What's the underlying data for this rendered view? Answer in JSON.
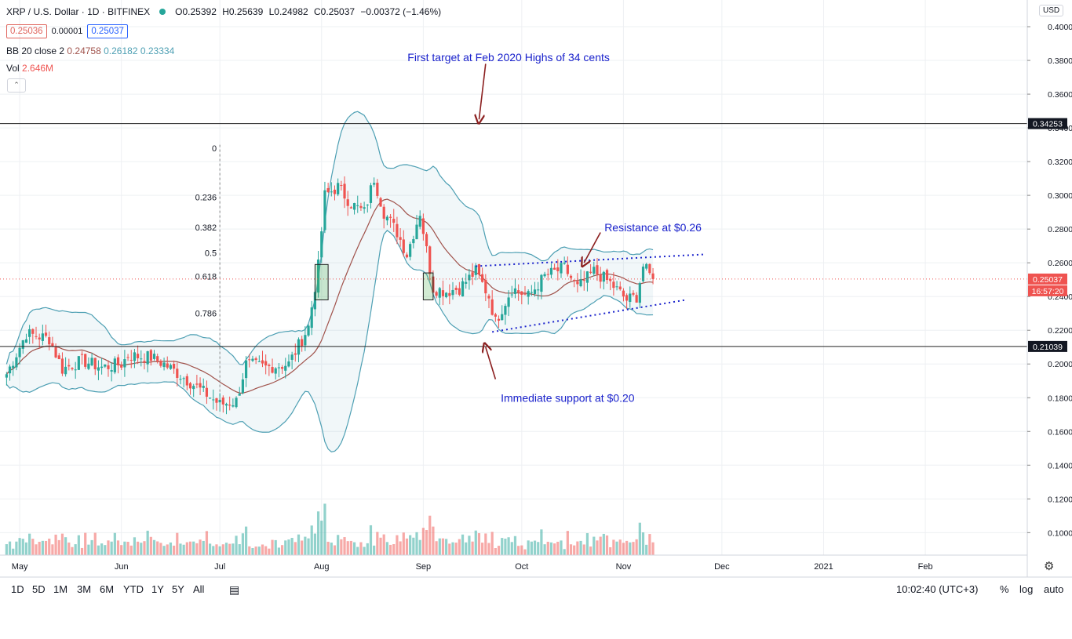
{
  "header": {
    "symbol": "XRP / U.S. Dollar · 1D · BITFINEX",
    "open": "O0.25392",
    "high": "H0.25639",
    "low": "L0.24982",
    "close": "C0.25037",
    "change": "−0.00372 (−1.46%)",
    "sell_price": "0.25036",
    "spread": "0.00001",
    "buy_price": "0.25037",
    "currency": "USD"
  },
  "indicators": {
    "bb_label": "BB 20 close 2",
    "bb_mid": "0.24758",
    "bb_upper": "0.26182",
    "bb_lower": "0.23334",
    "vol_label": "Vol",
    "vol_value": "2.646M"
  },
  "toolbar": {
    "timeframes": [
      "1D",
      "5D",
      "1M",
      "3M",
      "6M",
      "YTD",
      "1Y",
      "5Y",
      "All"
    ],
    "time": "10:02:40 (UTC+3)",
    "percent": "%",
    "log": "log",
    "auto": "auto"
  },
  "colors": {
    "up": "#26a69a",
    "down": "#ef5350",
    "bb_band": "#4d9fb3",
    "bb_mid": "#a0524b",
    "annotation": "#1a22cc"
  },
  "chart_data": {
    "type": "candlestick",
    "pair": "XRP/USD",
    "interval": "1D",
    "y_axis": {
      "ticks": [
        "0.40000",
        "0.38000",
        "0.36000",
        "0.34000",
        "0.32000",
        "0.30000",
        "0.28000",
        "0.26000",
        "0.24000",
        "0.22000",
        "0.20000",
        "0.18000",
        "0.16000",
        "0.14000",
        "0.12000",
        "0.10000"
      ],
      "range": [
        0.085,
        0.402
      ]
    },
    "x_axis": {
      "ticks": [
        "May",
        "Jun",
        "Jul",
        "Aug",
        "Sep",
        "Oct",
        "Nov",
        "Dec",
        "2021",
        "Feb"
      ]
    },
    "price_labels": {
      "level_high": "0.34253",
      "last": "0.25037",
      "countdown": "16:57:20",
      "level_low": "0.21039"
    },
    "horizontal_levels": [
      0.34253,
      0.21039
    ],
    "last_price": 0.25037,
    "close_path": [
      [
        "2020-04-27",
        0.194
      ],
      [
        "2020-05-03",
        0.218
      ],
      [
        "2020-05-10",
        0.215
      ],
      [
        "2020-05-14",
        0.197
      ],
      [
        "2020-05-20",
        0.202
      ],
      [
        "2020-05-26",
        0.198
      ],
      [
        "2020-06-01",
        0.2
      ],
      [
        "2020-06-03",
        0.205
      ],
      [
        "2020-06-10",
        0.204
      ],
      [
        "2020-06-14",
        0.2
      ],
      [
        "2020-06-20",
        0.192
      ],
      [
        "2020-06-27",
        0.182
      ],
      [
        "2020-07-01",
        0.176
      ],
      [
        "2020-07-06",
        0.178
      ],
      [
        "2020-07-09",
        0.2
      ],
      [
        "2020-07-15",
        0.198
      ],
      [
        "2020-07-22",
        0.2
      ],
      [
        "2020-07-28",
        0.222
      ],
      [
        "2020-07-31",
        0.258
      ],
      [
        "2020-08-02",
        0.3
      ],
      [
        "2020-08-06",
        0.305
      ],
      [
        "2020-08-10",
        0.295
      ],
      [
        "2020-08-14",
        0.29
      ],
      [
        "2020-08-17",
        0.31
      ],
      [
        "2020-08-20",
        0.29
      ],
      [
        "2020-08-24",
        0.278
      ],
      [
        "2020-08-27",
        0.265
      ],
      [
        "2020-08-31",
        0.29
      ],
      [
        "2020-09-04",
        0.245
      ],
      [
        "2020-09-08",
        0.243
      ],
      [
        "2020-09-12",
        0.245
      ],
      [
        "2020-09-17",
        0.255
      ],
      [
        "2020-09-21",
        0.24
      ],
      [
        "2020-09-23",
        0.225
      ],
      [
        "2020-09-28",
        0.245
      ],
      [
        "2020-10-03",
        0.24
      ],
      [
        "2020-10-08",
        0.252
      ],
      [
        "2020-10-14",
        0.257
      ],
      [
        "2020-10-18",
        0.245
      ],
      [
        "2020-10-23",
        0.255
      ],
      [
        "2020-10-28",
        0.248
      ],
      [
        "2020-11-02",
        0.238
      ],
      [
        "2020-11-05",
        0.24
      ],
      [
        "2020-11-07",
        0.258
      ],
      [
        "2020-11-10",
        0.25
      ]
    ],
    "volume_range": [
      0,
      2.646
    ],
    "fibonacci": {
      "levels": [
        "0",
        "0.236",
        "0.382",
        "0.5",
        "0.618",
        "0.786"
      ],
      "values": [
        0.328,
        0.299,
        0.281,
        0.266,
        0.252,
        0.23
      ]
    },
    "annotations": [
      "First target at Feb 2020 Highs of 34 cents",
      "Resistance at $0.26",
      "Immediate support at $0.20"
    ]
  }
}
